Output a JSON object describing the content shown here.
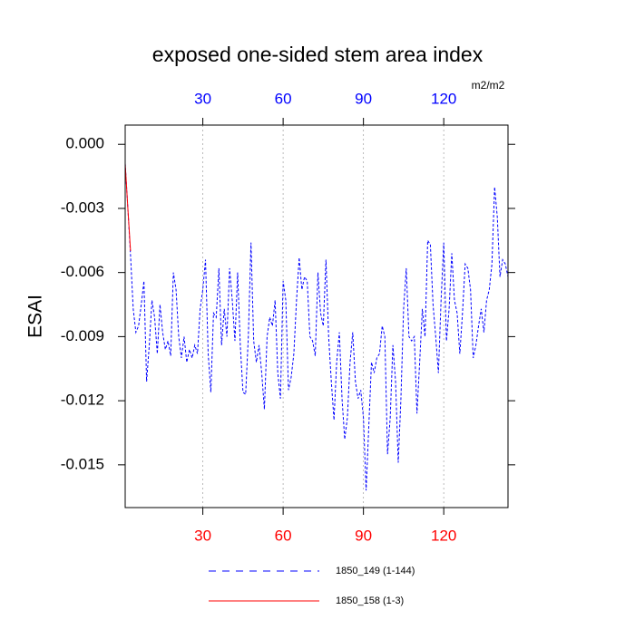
{
  "chart_data": {
    "type": "line",
    "title": "exposed one-sided stem area index",
    "ylabel": "ESAI",
    "units": "m2/m2",
    "xlim": [
      1,
      144
    ],
    "ylim": [
      -0.017,
      0.0009
    ],
    "xticks": [
      30,
      60,
      90,
      120
    ],
    "x2ticks": [
      30,
      60,
      90,
      120
    ],
    "xtick_color": "#ff0000",
    "x2tick_color": "#0000ff",
    "yticks": [
      {
        "value": 0,
        "label": "0.000"
      },
      {
        "value": -0.003,
        "label": "-0.003"
      },
      {
        "value": -0.006,
        "label": "-0.006"
      },
      {
        "value": -0.009,
        "label": "-0.009"
      },
      {
        "value": -0.012,
        "label": "-0.012"
      },
      {
        "value": -0.015,
        "label": "-0.015"
      }
    ],
    "grid": true,
    "series": [
      {
        "name": "1850_149 (1-144)",
        "color": "#0000ff",
        "line_style": "dashed",
        "x": [
          1,
          2,
          3,
          4,
          5,
          6,
          7,
          8,
          9,
          10,
          11,
          12,
          13,
          14,
          15,
          16,
          17,
          18,
          19,
          20,
          21,
          22,
          23,
          24,
          25,
          26,
          27,
          28,
          29,
          30,
          31,
          32,
          33,
          34,
          35,
          36,
          37,
          38,
          39,
          40,
          41,
          42,
          43,
          44,
          45,
          46,
          47,
          48,
          49,
          50,
          51,
          52,
          53,
          54,
          55,
          56,
          57,
          58,
          59,
          60,
          61,
          62,
          63,
          64,
          65,
          66,
          67,
          68,
          69,
          70,
          71,
          72,
          73,
          74,
          75,
          76,
          77,
          78,
          79,
          80,
          81,
          82,
          83,
          84,
          85,
          86,
          87,
          88,
          89,
          90,
          91,
          92,
          93,
          94,
          95,
          96,
          97,
          98,
          99,
          100,
          101,
          102,
          103,
          104,
          105,
          106,
          107,
          108,
          109,
          110,
          111,
          112,
          113,
          114,
          115,
          116,
          117,
          118,
          119,
          120,
          121,
          122,
          123,
          124,
          125,
          126,
          127,
          128,
          129,
          130,
          131,
          132,
          133,
          134,
          135,
          136,
          137,
          138,
          139,
          140,
          141,
          142,
          143,
          144
        ],
        "values": [
          -0.0009,
          -0.003,
          -0.0052,
          -0.0077,
          -0.0088,
          -0.0085,
          -0.0075,
          -0.0064,
          -0.0111,
          -0.0094,
          -0.0073,
          -0.0081,
          -0.0098,
          -0.0075,
          -0.0088,
          -0.0096,
          -0.0092,
          -0.0099,
          -0.006,
          -0.0068,
          -0.009,
          -0.01,
          -0.009,
          -0.0102,
          -0.0096,
          -0.01,
          -0.0094,
          -0.0098,
          -0.0077,
          -0.0068,
          -0.0054,
          -0.0098,
          -0.0116,
          -0.0079,
          -0.0081,
          -0.0058,
          -0.0094,
          -0.0077,
          -0.009,
          -0.0058,
          -0.0073,
          -0.0092,
          -0.006,
          -0.0094,
          -0.0116,
          -0.0117,
          -0.009,
          -0.0046,
          -0.0092,
          -0.0102,
          -0.0094,
          -0.0107,
          -0.0124,
          -0.009,
          -0.0081,
          -0.0085,
          -0.0073,
          -0.0107,
          -0.0119,
          -0.0064,
          -0.0073,
          -0.0115,
          -0.0109,
          -0.0098,
          -0.0073,
          -0.0053,
          -0.0068,
          -0.0062,
          -0.0064,
          -0.009,
          -0.0092,
          -0.0099,
          -0.006,
          -0.0079,
          -0.0085,
          -0.0054,
          -0.009,
          -0.0111,
          -0.0129,
          -0.0102,
          -0.0088,
          -0.0119,
          -0.0138,
          -0.0128,
          -0.0102,
          -0.0088,
          -0.0111,
          -0.0119,
          -0.0115,
          -0.0128,
          -0.0162,
          -0.0132,
          -0.0102,
          -0.0107,
          -0.01,
          -0.0098,
          -0.0085,
          -0.009,
          -0.0145,
          -0.0128,
          -0.0094,
          -0.0111,
          -0.0149,
          -0.0119,
          -0.0077,
          -0.0058,
          -0.009,
          -0.0092,
          -0.009,
          -0.0126,
          -0.0102,
          -0.0077,
          -0.009,
          -0.0045,
          -0.0047,
          -0.0075,
          -0.009,
          -0.0107,
          -0.0073,
          -0.0046,
          -0.0092,
          -0.0077,
          -0.0051,
          -0.0073,
          -0.0079,
          -0.0098,
          -0.0079,
          -0.0056,
          -0.0058,
          -0.0068,
          -0.01,
          -0.0094,
          -0.0085,
          -0.0077,
          -0.0088,
          -0.0073,
          -0.0068,
          -0.0056,
          -0.002,
          -0.0034,
          -0.0062,
          -0.0054,
          -0.0056,
          -0.0062
        ]
      },
      {
        "name": "1850_158 (1-3)",
        "color": "#ff0000",
        "line_style": "solid",
        "x": [
          1,
          2,
          3
        ],
        "values": [
          -0.0009,
          -0.003,
          -0.005
        ]
      }
    ]
  }
}
